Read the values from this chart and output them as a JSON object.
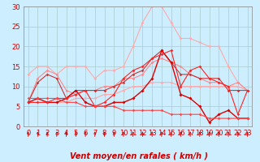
{
  "title": "",
  "xlabel": "Vent moyen/en rafales ( km/h )",
  "ylabel": "",
  "xlim": [
    -0.5,
    23.5
  ],
  "ylim": [
    0,
    30
  ],
  "xticks": [
    0,
    1,
    2,
    3,
    4,
    5,
    6,
    7,
    8,
    9,
    10,
    11,
    12,
    13,
    14,
    15,
    16,
    17,
    18,
    19,
    20,
    21,
    22,
    23
  ],
  "yticks": [
    0,
    5,
    10,
    15,
    20,
    25,
    30
  ],
  "bg_color": "#cceeff",
  "grid_color": "#aacccc",
  "lines": [
    {
      "x": [
        0,
        1,
        2,
        3,
        4,
        5,
        6,
        7,
        8,
        9,
        10,
        11,
        12,
        13,
        14,
        15,
        16,
        17,
        18,
        19,
        20,
        21,
        22,
        23
      ],
      "y": [
        13,
        15,
        15,
        13,
        15,
        15,
        15,
        12,
        14,
        14,
        15,
        20,
        26,
        30,
        30,
        26,
        22,
        22,
        21,
        20,
        20,
        15,
        11,
        9
      ],
      "color": "#ffaaaa",
      "lw": 0.8,
      "marker": "D",
      "ms": 1.8
    },
    {
      "x": [
        0,
        1,
        2,
        3,
        4,
        5,
        6,
        7,
        8,
        9,
        10,
        11,
        12,
        13,
        14,
        15,
        16,
        17,
        18,
        19,
        20,
        21,
        22,
        23
      ],
      "y": [
        6,
        6,
        6,
        6,
        6,
        7,
        7,
        7,
        8,
        8,
        9,
        10,
        10,
        11,
        11,
        11,
        10,
        10,
        10,
        10,
        10,
        10,
        10,
        9
      ],
      "color": "#ffaaaa",
      "lw": 0.8,
      "marker": "D",
      "ms": 1.8
    },
    {
      "x": [
        0,
        1,
        2,
        3,
        4,
        5,
        6,
        7,
        8,
        9,
        10,
        11,
        12,
        13,
        14,
        15,
        16,
        17,
        18,
        19,
        20,
        21,
        22,
        23
      ],
      "y": [
        6,
        12,
        14,
        13,
        9,
        8,
        9,
        9,
        10,
        10,
        12,
        12,
        13,
        16,
        17,
        16,
        15,
        13,
        12,
        11,
        11,
        10,
        11,
        9
      ],
      "color": "#ff8888",
      "lw": 0.8,
      "marker": "D",
      "ms": 1.8
    },
    {
      "x": [
        0,
        1,
        2,
        3,
        4,
        5,
        6,
        7,
        8,
        9,
        10,
        11,
        12,
        13,
        14,
        15,
        16,
        17,
        18,
        19,
        20,
        21,
        22,
        23
      ],
      "y": [
        6,
        11,
        13,
        12,
        7,
        9,
        9,
        9,
        9,
        10,
        11,
        13,
        14,
        17,
        19,
        16,
        13,
        13,
        12,
        12,
        12,
        9,
        9,
        9
      ],
      "color": "#cc3333",
      "lw": 0.8,
      "marker": "D",
      "ms": 1.8
    },
    {
      "x": [
        0,
        1,
        2,
        3,
        4,
        5,
        6,
        7,
        8,
        9,
        10,
        11,
        12,
        13,
        14,
        15,
        16,
        17,
        18,
        19,
        20,
        21,
        22,
        23
      ],
      "y": [
        6,
        7,
        6,
        6,
        7,
        9,
        6,
        5,
        5,
        6,
        6,
        7,
        9,
        12,
        19,
        16,
        8,
        7,
        5,
        1,
        3,
        4,
        2,
        2
      ],
      "color": "#dd0000",
      "lw": 1.0,
      "marker": "D",
      "ms": 2.0
    },
    {
      "x": [
        0,
        1,
        2,
        3,
        4,
        5,
        6,
        7,
        8,
        9,
        10,
        11,
        12,
        13,
        14,
        15,
        16,
        17,
        18,
        19,
        20,
        21,
        22,
        23
      ],
      "y": [
        6,
        6,
        6,
        7,
        7,
        8,
        9,
        5,
        6,
        8,
        12,
        14,
        15,
        17,
        18,
        19,
        10,
        14,
        15,
        12,
        11,
        10,
        3,
        9
      ],
      "color": "#ff2222",
      "lw": 0.8,
      "marker": "D",
      "ms": 1.8
    },
    {
      "x": [
        0,
        1,
        2,
        3,
        4,
        5,
        6,
        7,
        8,
        9,
        10,
        11,
        12,
        13,
        14,
        15,
        16,
        17,
        18,
        19,
        20,
        21,
        22,
        23
      ],
      "y": [
        7,
        7,
        7,
        7,
        6,
        6,
        5,
        5,
        5,
        5,
        4,
        4,
        4,
        4,
        4,
        3,
        3,
        3,
        3,
        2,
        2,
        2,
        2,
        2
      ],
      "color": "#ff4444",
      "lw": 0.8,
      "marker": "D",
      "ms": 1.8
    }
  ],
  "xlabel_fontsize": 7,
  "tick_fontsize": 6,
  "xlabel_color": "#cc0000",
  "tick_color": "#cc0000"
}
